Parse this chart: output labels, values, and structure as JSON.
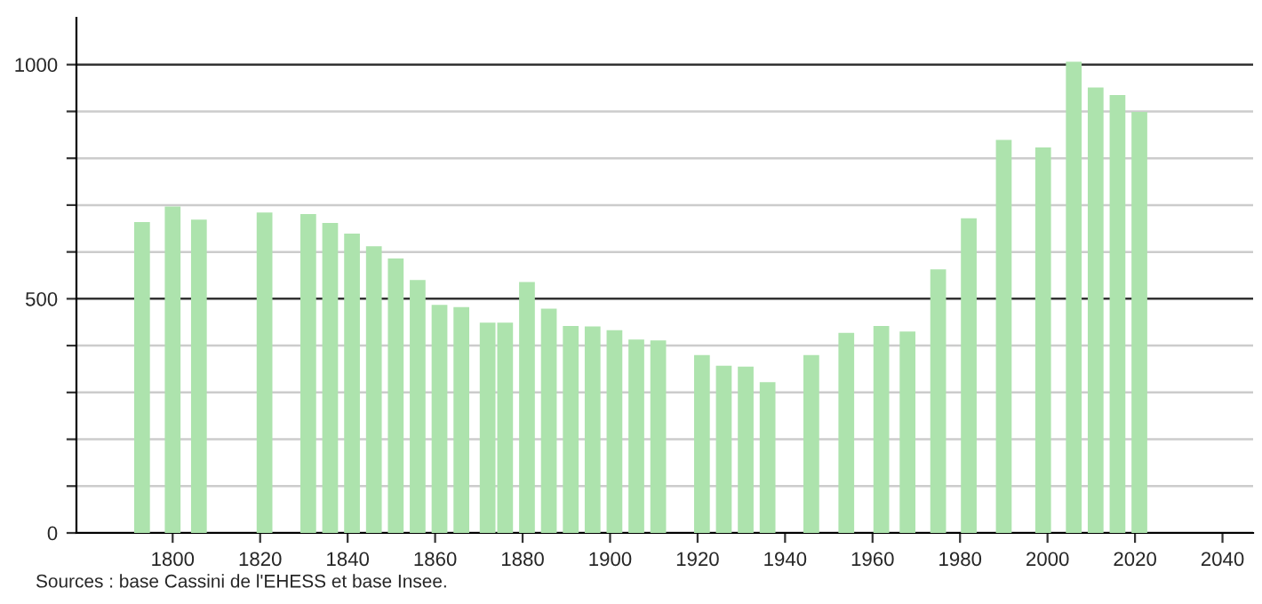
{
  "chart_data": {
    "type": "bar",
    "x": [
      1793,
      1800,
      1806,
      1821,
      1831,
      1836,
      1841,
      1846,
      1851,
      1856,
      1861,
      1866,
      1872,
      1876,
      1881,
      1886,
      1891,
      1896,
      1901,
      1906,
      1911,
      1921,
      1926,
      1931,
      1936,
      1946,
      1954,
      1962,
      1968,
      1975,
      1982,
      1990,
      1999,
      2006,
      2011,
      2016,
      2021
    ],
    "series": [
      {
        "color": "#ade3ad",
        "values": [
          664,
          697,
          669,
          684,
          681,
          662,
          639,
          612,
          586,
          540,
          487,
          482,
          449,
          449,
          536,
          479,
          442,
          441,
          433,
          413,
          411,
          380,
          357,
          355,
          322,
          380,
          427,
          442,
          430,
          563,
          672,
          839,
          823,
          1006,
          951,
          935,
          899
        ]
      }
    ],
    "xlim": [
      1778,
      2047
    ],
    "xticks": [
      1800,
      1820,
      1840,
      1860,
      1880,
      1900,
      1920,
      1940,
      1960,
      1980,
      2000,
      2020,
      2040
    ],
    "ylim": [
      0,
      1100
    ],
    "yticks": [
      0,
      {
        "value": 100,
        "label": null
      },
      {
        "value": 200,
        "label": null
      },
      {
        "value": 300,
        "label": null
      },
      {
        "value": 400,
        "label": null
      },
      500,
      {
        "value": 600,
        "label": null
      },
      {
        "value": 700,
        "label": null
      },
      {
        "value": 800,
        "label": null
      },
      {
        "value": 900,
        "label": null
      },
      1000
    ],
    "grid": "y",
    "annotations": [
      "Sources : base Cassini de l'EHESS et base Insee."
    ]
  }
}
